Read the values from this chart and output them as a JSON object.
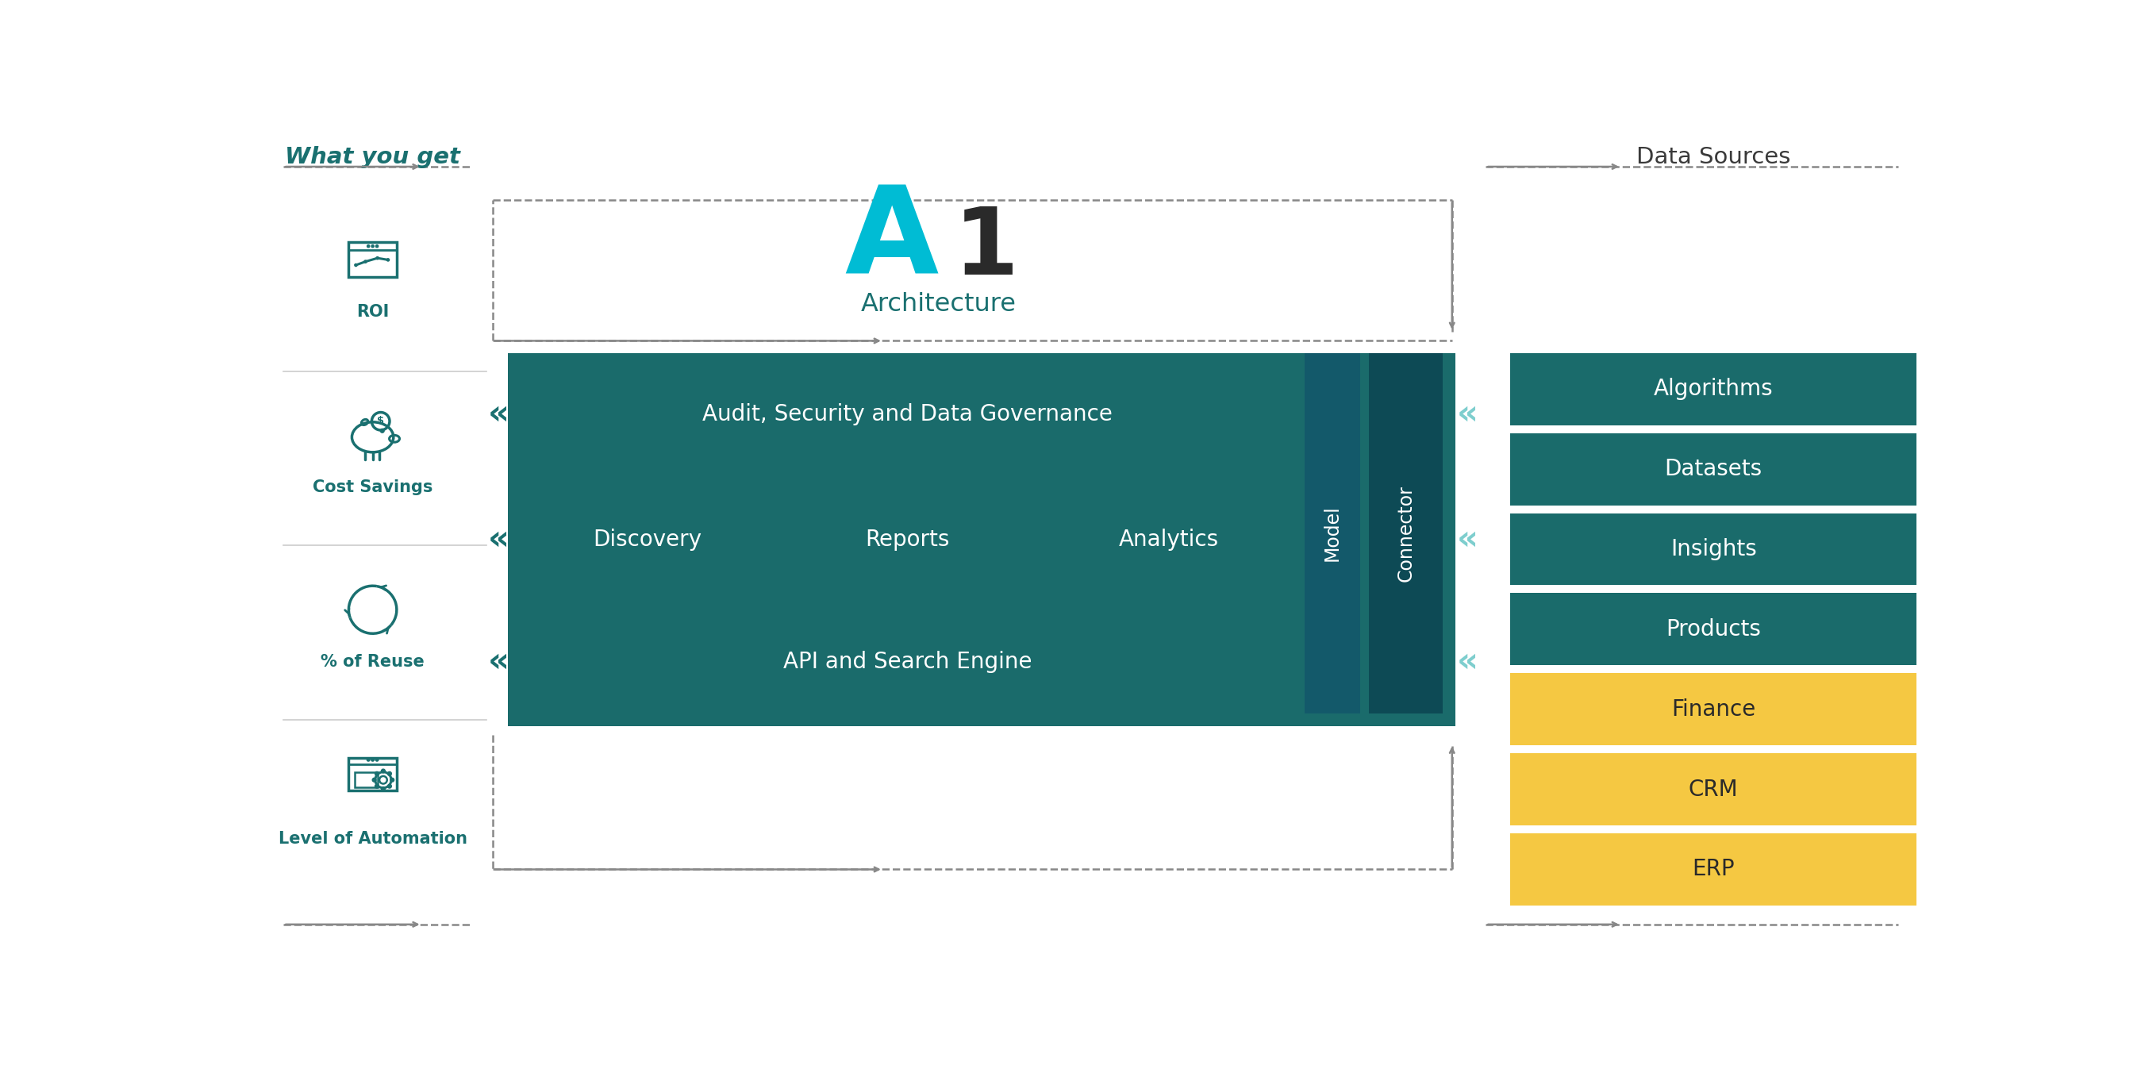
{
  "title_a1_A": "A",
  "title_a1_1": "1",
  "title_arch": "Architecture",
  "left_section_title": "What you get",
  "right_section_title": "Data Sources",
  "teal_main": "#1a7070",
  "teal_box": "#1a6b6b",
  "teal_dark": "#0d4a55",
  "teal_mid": "#155f65",
  "cyan_title": "#00bcd4",
  "yellow_color": "#f5c842",
  "white": "#ffffff",
  "bg_color": "#ffffff",
  "arrow_color": "#888888",
  "separator_color": "#cccccc",
  "chevron_teal": "#1a7070",
  "chevron_light": "#7ecece",
  "left_items": [
    "ROI",
    "Cost Savings",
    "% of Reuse",
    "Level of Automation"
  ],
  "right_teal_items": [
    "Algorithms",
    "Datasets",
    "Insights",
    "Products"
  ],
  "right_yellow_items": [
    "Finance",
    "CRM",
    "ERP"
  ],
  "center_top": "Audit, Security and Data Governance",
  "center_mid": [
    "Discovery",
    "Reports",
    "Analytics"
  ],
  "center_bot": "API and Search Engine",
  "col_model": "Model",
  "col_connector": "Connector"
}
